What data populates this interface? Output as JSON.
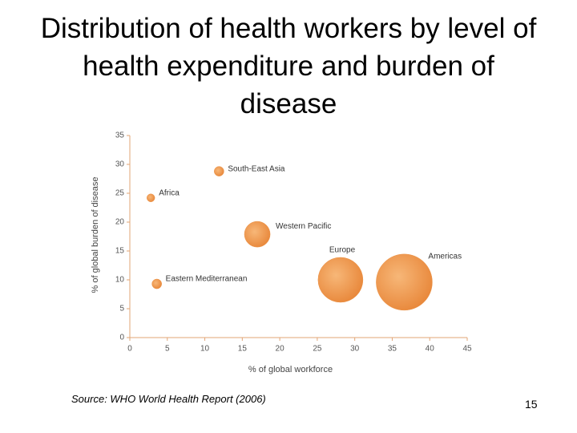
{
  "chart_data": {
    "type": "scatter",
    "title": "Distribution of health workers by level of health expenditure and burden of disease",
    "x_label": "% of global workforce",
    "y_label": "% of global burden of disease",
    "categories": [
      "Africa",
      "South-East Asia",
      "Western Pacific",
      "Eastern Mediterranean",
      "Europe",
      "Americas"
    ],
    "x": [
      2.8,
      11.9,
      17.0,
      3.6,
      28.1,
      36.6
    ],
    "values": [
      24.2,
      28.8,
      17.9,
      9.3,
      10.0,
      9.6
    ],
    "sizes": [
      1,
      1.5,
      10.5,
      1.5,
      32,
      50
    ],
    "color": "#ec9448",
    "xlim": [
      0,
      45
    ],
    "xticks": [
      0,
      5,
      10,
      15,
      20,
      25,
      30,
      35,
      40,
      45
    ],
    "ylim": [
      0,
      35
    ],
    "yticks": [
      0,
      5,
      10,
      15,
      20,
      25,
      30,
      35
    ],
    "grid": false
  },
  "source": "Source: WHO World Health Report (2006)",
  "page_number": "15"
}
